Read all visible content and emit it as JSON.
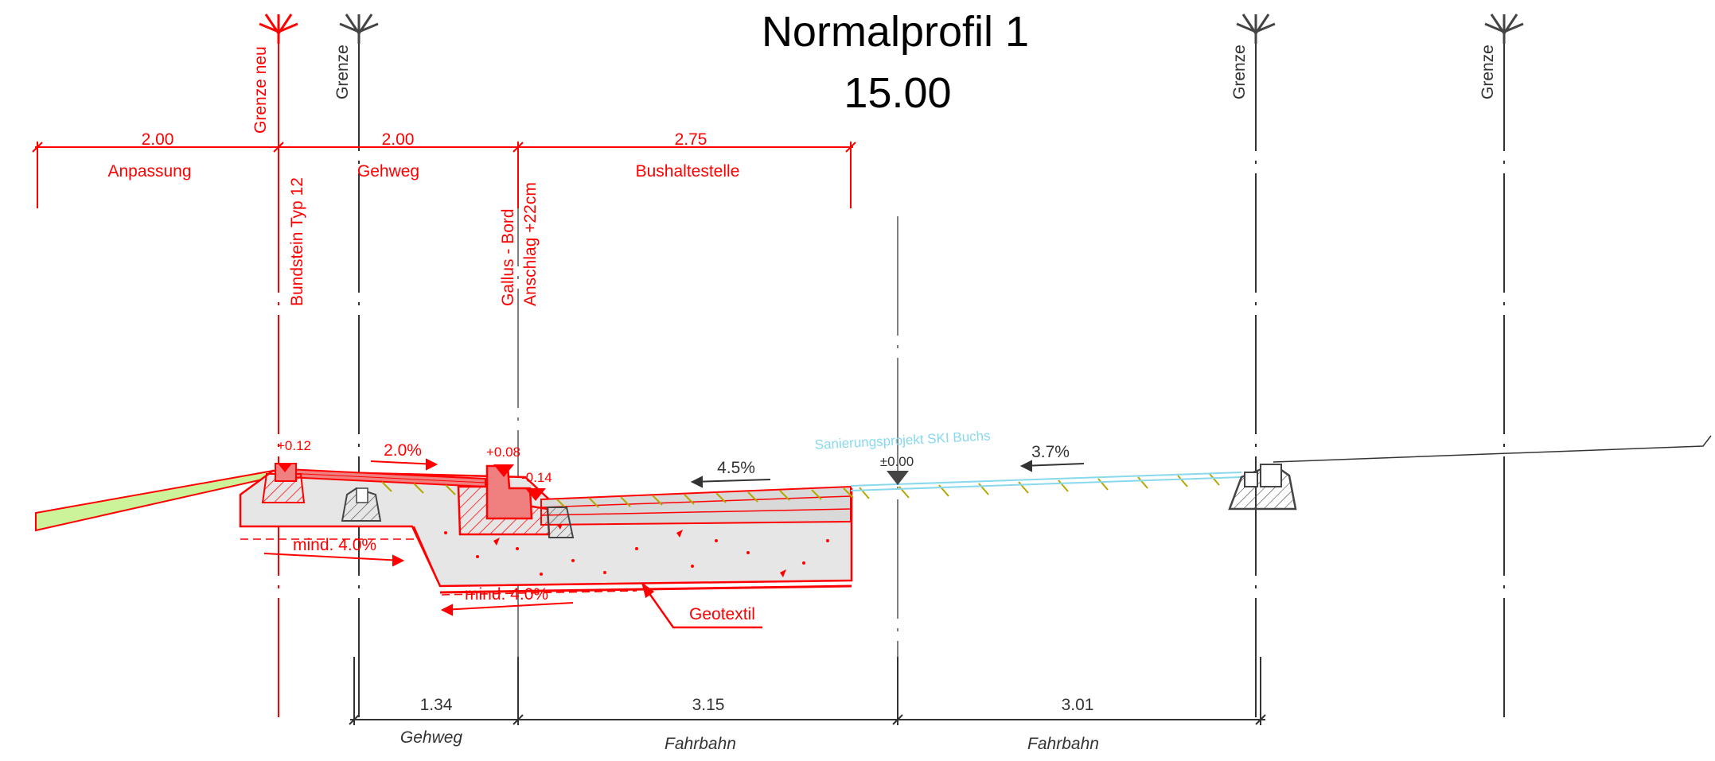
{
  "title": "Normalprofil 1",
  "station": "15.00",
  "boundaries": {
    "grenze_neu": "Grenze neu",
    "grenze": "Grenze"
  },
  "top_dimensions": [
    {
      "value": "2.00",
      "label": "Anpassung"
    },
    {
      "value": "2.00",
      "label": "Gehweg"
    },
    {
      "value": "2.75",
      "label": "Bushaltestelle"
    }
  ],
  "annotations": {
    "bundstein": "Bundstein Typ 12",
    "gallus_line1": "Gallus - Bord",
    "gallus_line2": "Anschlag +22cm",
    "elev_plus012": "+0.12",
    "elev_plus008": "+0.08",
    "elev_minus014": "-0.14",
    "elev_zero": "±0.00",
    "slope_2": "2.0%",
    "slope_45": "4.5%",
    "slope_37": "3.7%",
    "mind_1": "mind. 4.0%",
    "mind_2": "mind. 4.0%",
    "geotextil": "Geotextil",
    "sanierung": "Sanierungsprojekt SKI Buchs"
  },
  "bottom_dimensions": [
    {
      "value": "1.34",
      "label": "Gehweg"
    },
    {
      "value": "3.15",
      "label": "Fahrbahn"
    },
    {
      "value": "3.01",
      "label": "Fahrbahn"
    }
  ],
  "colors": {
    "red": "#ff0000",
    "grey": "#333333",
    "green_fill": "#ccf29a",
    "concrete": "#e6e6e6",
    "curb_fill": "#f08080",
    "hatch": "#b5a600",
    "cyan": "#88d8ee"
  }
}
